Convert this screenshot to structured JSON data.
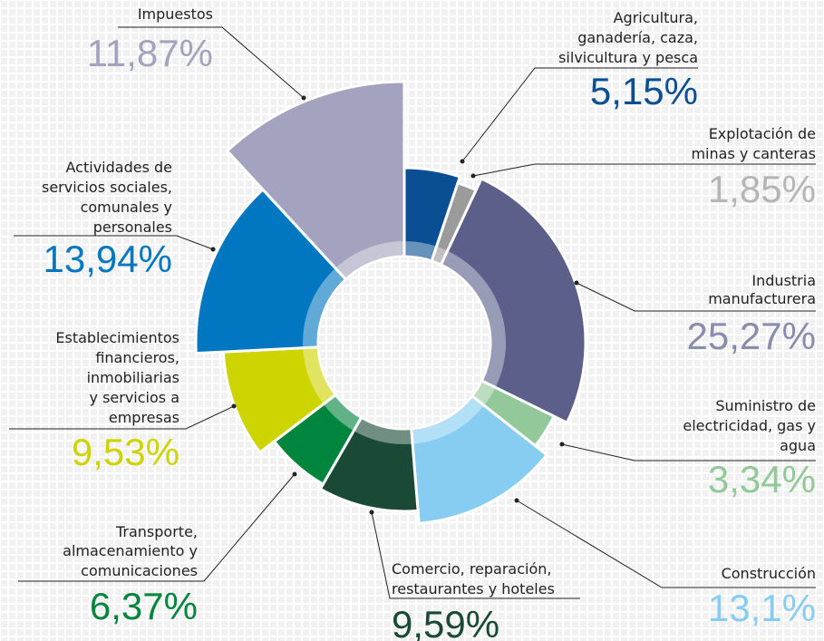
{
  "chart_data": {
    "type": "donut",
    "categories": [
      [
        "Agricultura,",
        "ganadería, caza,",
        "silvicultura y pesca"
      ],
      [
        "Explotación de",
        "minas y canteras"
      ],
      [
        "Industria",
        "manufacturera"
      ],
      [
        "Suministro de",
        "electricidad, gas y",
        "agua"
      ],
      [
        "Construcción"
      ],
      [
        "Comercio, reparación,",
        "restaurantes y hoteles"
      ],
      [
        "Transporte,",
        "almacenamiento y",
        "comunicaciones"
      ],
      [
        "Establecimientos",
        "financieros,",
        "inmobiliarias",
        "y servicios a",
        "empresas"
      ],
      [
        "Actividades de",
        "servicios sociales,",
        "comunales y",
        "personales"
      ],
      [
        "Impuestos"
      ]
    ],
    "values": [
      5.15,
      1.85,
      25.27,
      3.34,
      13.1,
      9.59,
      6.37,
      9.53,
      13.94,
      11.87
    ],
    "value_labels": [
      "5,15%",
      "1,85%",
      "25,27%",
      "3,34%",
      "13,1%",
      "9,59%",
      "6,37%",
      "9,53%",
      "13,94%",
      "11,87%"
    ],
    "colors": [
      "#0a4f94",
      "#9b9b9b",
      "#5b5f8a",
      "#93c89a",
      "#87cdf2",
      "#1a4a36",
      "#00853e",
      "#cdd400",
      "#0077c0",
      "#a3a3bf"
    ],
    "value_label_colors": [
      "#0a4f94",
      "#b5b5b5",
      "#8a8cab",
      "#93c89a",
      "#87cdf2",
      "#1a4a36",
      "#00853e",
      "#cdd400",
      "#0077c0",
      "#a3a3bf"
    ]
  }
}
